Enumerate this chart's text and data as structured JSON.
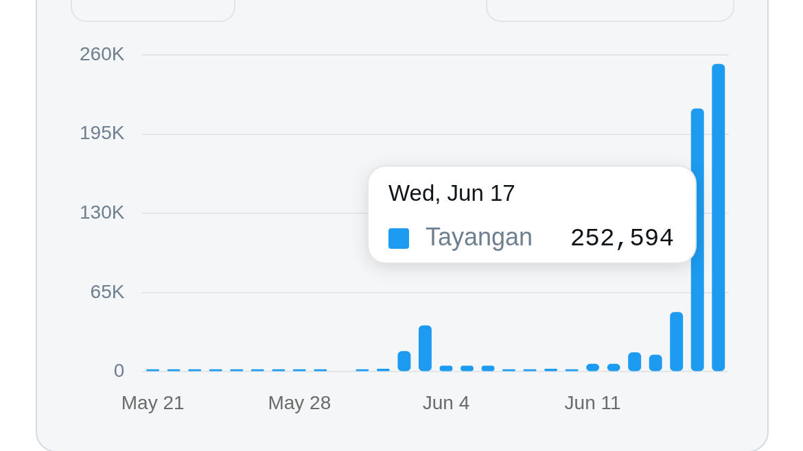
{
  "chart_data": {
    "type": "bar",
    "categories": [
      "May 21",
      null,
      null,
      null,
      null,
      null,
      null,
      "May 28",
      null,
      null,
      null,
      null,
      null,
      null,
      "Jun 4",
      null,
      null,
      null,
      null,
      null,
      null,
      "Jun 11",
      null,
      null,
      null,
      null,
      null,
      null
    ],
    "series": [
      {
        "name": "Tayangan",
        "color": "#1d9bf0",
        "values": [
          2000,
          2000,
          2000,
          2000,
          2000,
          2000,
          2000,
          2000,
          2000,
          0,
          2000,
          2500,
          17000,
          38000,
          5000,
          5000,
          5000,
          2000,
          2000,
          2500,
          2000,
          6500,
          6500,
          16000,
          14000,
          49000,
          216000,
          252594
        ]
      }
    ],
    "annotations": [
      "Wed, Jun 17",
      "252,594"
    ],
    "ylim": [
      0,
      260000
    ],
    "yticks": [
      {
        "value": 0,
        "label": "0"
      },
      {
        "value": 65000,
        "label": "65K"
      },
      {
        "value": 130000,
        "label": "130K"
      },
      {
        "value": 195000,
        "label": "195K"
      },
      {
        "value": 260000,
        "label": "260K"
      }
    ],
    "grid": "y",
    "legend": "right"
  }
}
